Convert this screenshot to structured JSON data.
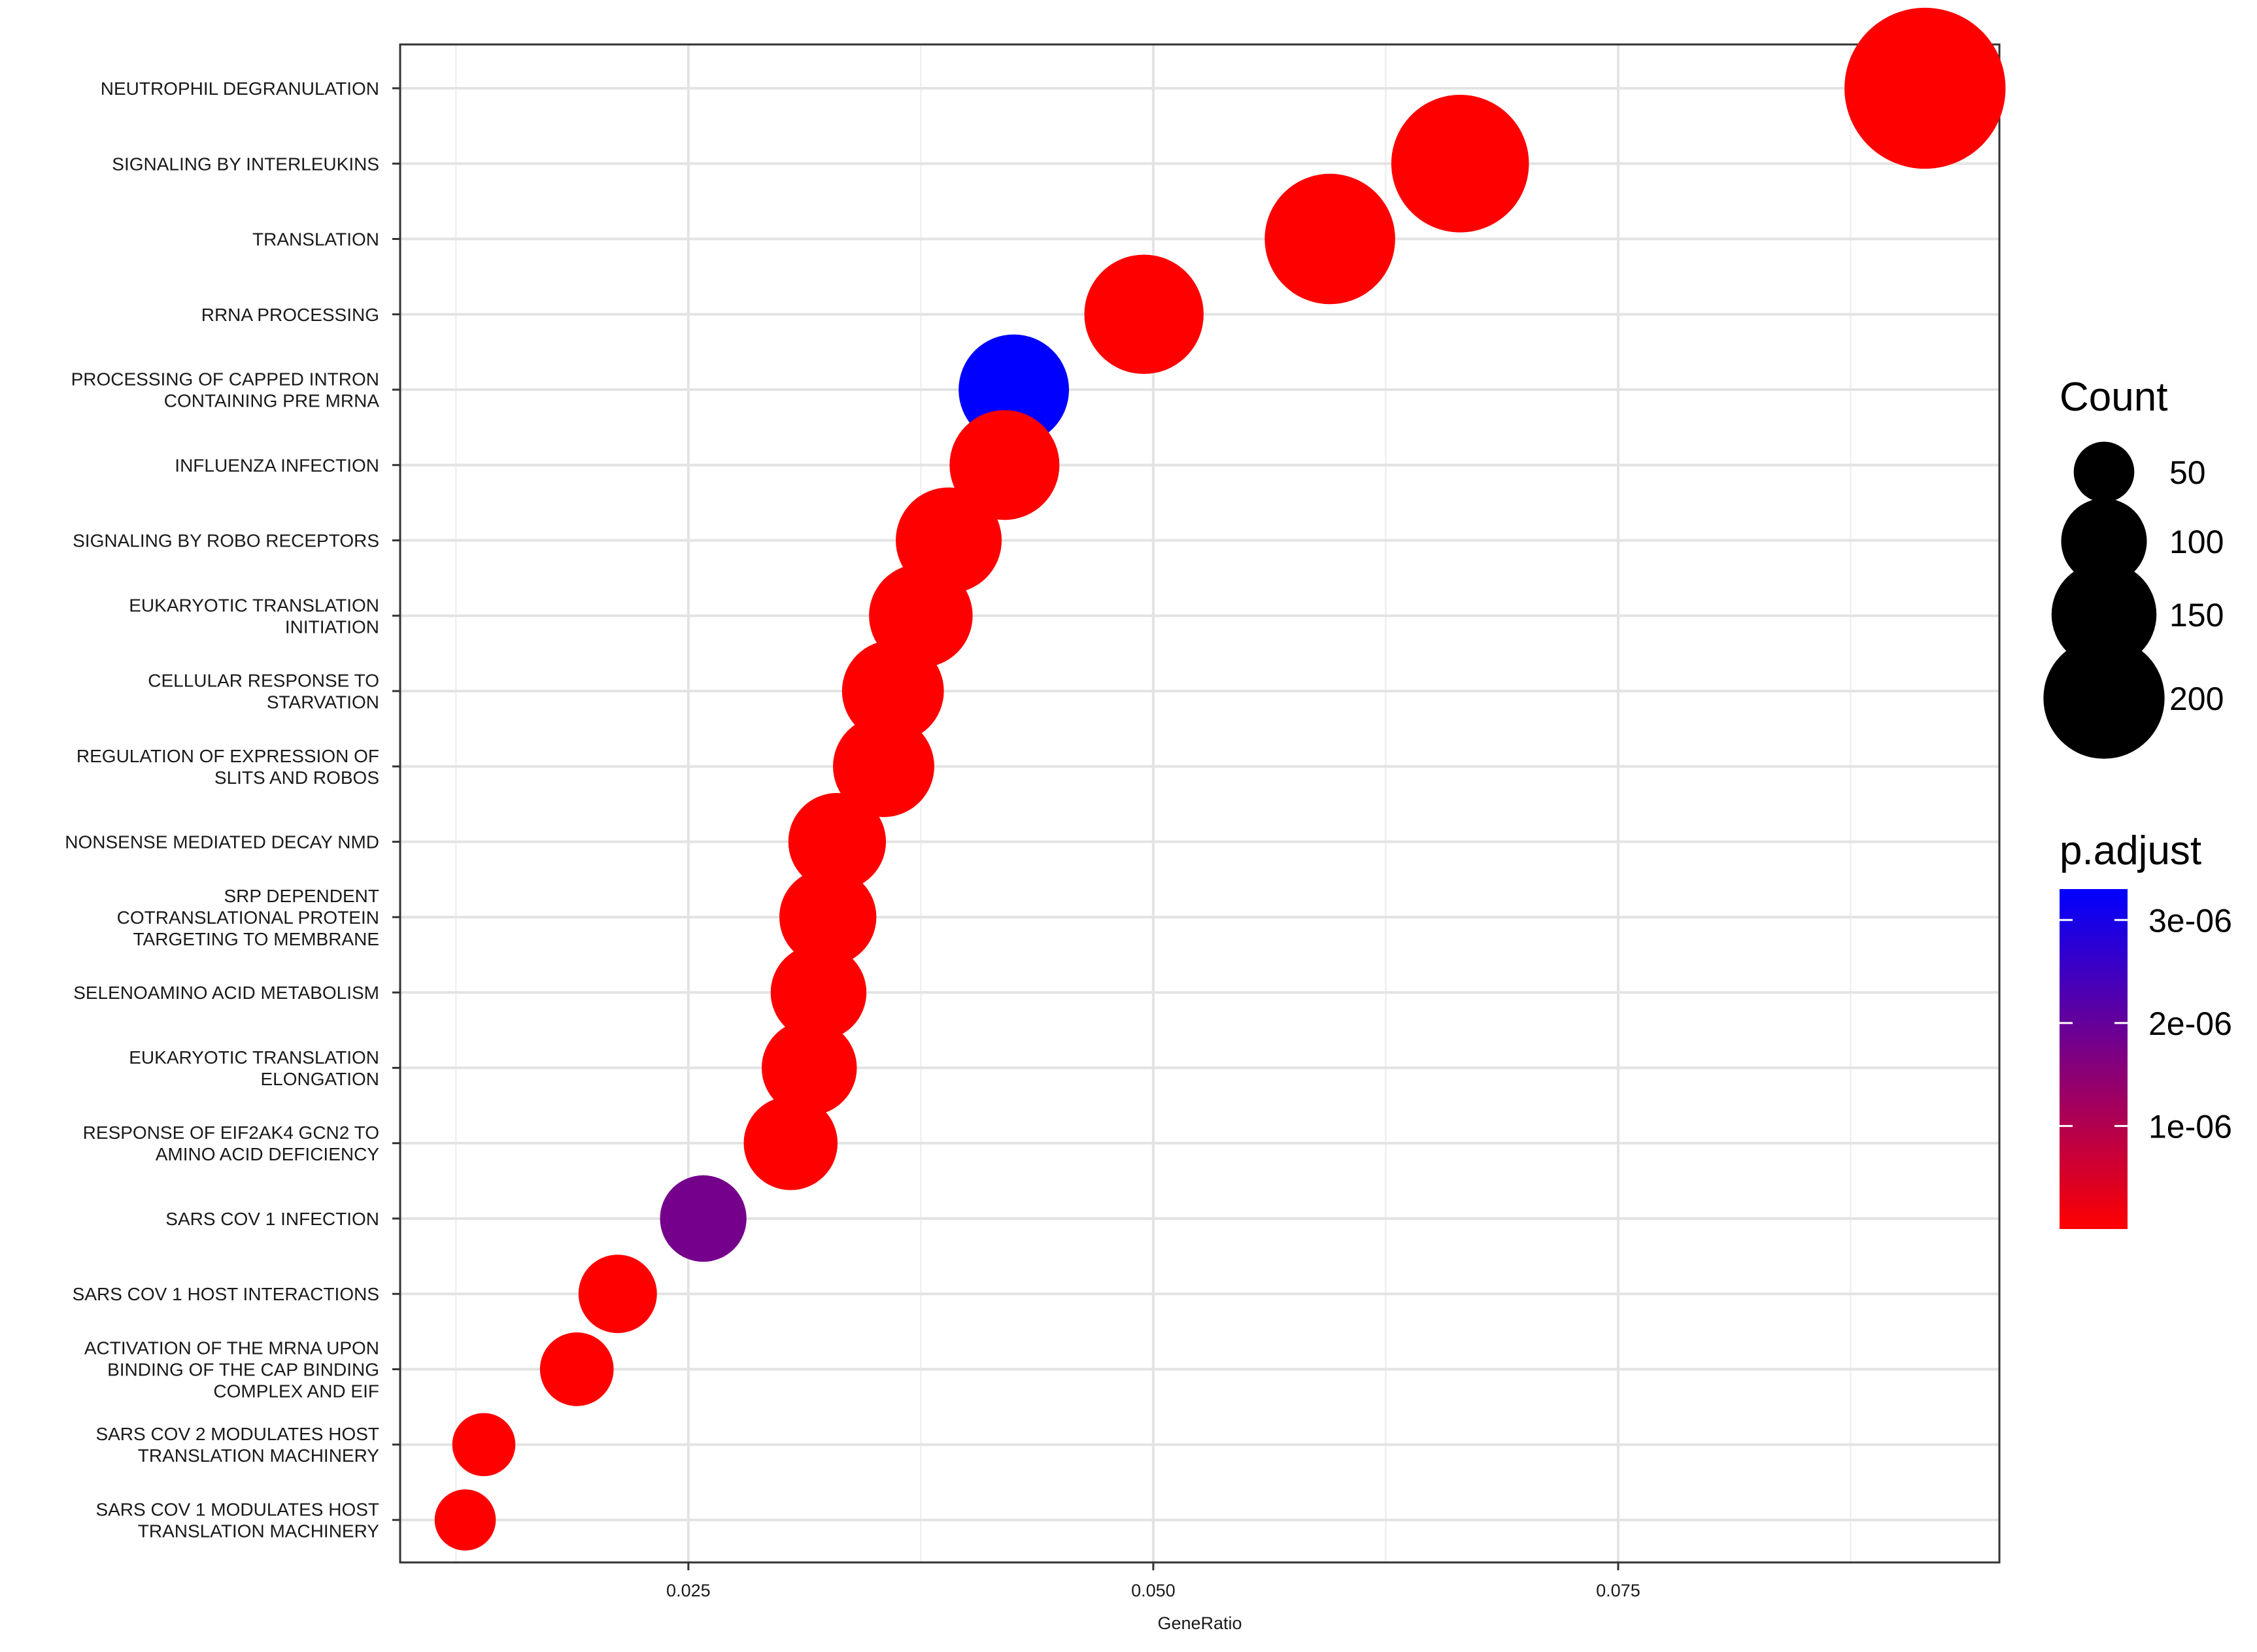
{
  "chart_data": {
    "type": "scatter",
    "xlabel": "GeneRatio",
    "xlim": [
      0.0095,
      0.0955
    ],
    "xticks": [
      {
        "value": 0.025,
        "label": "0.025"
      },
      {
        "value": 0.05,
        "label": "0.050"
      },
      {
        "value": 0.075,
        "label": "0.075"
      }
    ],
    "categories": [
      [
        "NEUTROPHIL DEGRANULATION"
      ],
      [
        "SIGNALING BY INTERLEUKINS"
      ],
      [
        "TRANSLATION"
      ],
      [
        "RRNA PROCESSING"
      ],
      [
        "PROCESSING OF CAPPED INTRON",
        "CONTAINING PRE MRNA"
      ],
      [
        "INFLUENZA INFECTION"
      ],
      [
        "SIGNALING BY ROBO RECEPTORS"
      ],
      [
        "EUKARYOTIC TRANSLATION",
        "INITIATION"
      ],
      [
        "CELLULAR RESPONSE TO",
        "STARVATION"
      ],
      [
        "REGULATION OF EXPRESSION OF",
        "SLITS AND ROBOS"
      ],
      [
        "NONSENSE MEDIATED DECAY NMD"
      ],
      [
        "SRP DEPENDENT",
        "COTRANSLATIONAL PROTEIN",
        "TARGETING TO MEMBRANE"
      ],
      [
        "SELENOAMINO ACID METABOLISM"
      ],
      [
        "EUKARYOTIC TRANSLATION",
        "ELONGATION"
      ],
      [
        "RESPONSE OF EIF2AK4 GCN2 TO",
        "AMINO ACID DEFICIENCY"
      ],
      [
        "SARS COV 1 INFECTION"
      ],
      [
        "SARS COV 1 HOST INTERACTIONS"
      ],
      [
        "ACTIVATION OF THE MRNA UPON",
        "BINDING OF THE CAP BINDING",
        "COMPLEX AND EIF"
      ],
      [
        "SARS COV 2 MODULATES HOST",
        "TRANSLATION MACHINERY"
      ],
      [
        "SARS COV 1 MODULATES HOST",
        "TRANSLATION MACHINERY"
      ]
    ],
    "points": [
      {
        "x": 0.0915,
        "count": 215,
        "p_adjust": 2e-10
      },
      {
        "x": 0.0665,
        "count": 157,
        "p_adjust": 2e-10
      },
      {
        "x": 0.0595,
        "count": 141,
        "p_adjust": 2e-10
      },
      {
        "x": 0.0495,
        "count": 118,
        "p_adjust": 2e-10
      },
      {
        "x": 0.0425,
        "count": 101,
        "p_adjust": 3.3e-06
      },
      {
        "x": 0.042,
        "count": 100,
        "p_adjust": 2e-10
      },
      {
        "x": 0.039,
        "count": 93,
        "p_adjust": 2e-10
      },
      {
        "x": 0.0375,
        "count": 89,
        "p_adjust": 2e-10
      },
      {
        "x": 0.036,
        "count": 86,
        "p_adjust": 2e-10
      },
      {
        "x": 0.0355,
        "count": 85,
        "p_adjust": 2e-10
      },
      {
        "x": 0.033,
        "count": 79,
        "p_adjust": 2e-10
      },
      {
        "x": 0.0325,
        "count": 78,
        "p_adjust": 2e-10
      },
      {
        "x": 0.032,
        "count": 76,
        "p_adjust": 2e-10
      },
      {
        "x": 0.0315,
        "count": 75,
        "p_adjust": 2e-10
      },
      {
        "x": 0.0305,
        "count": 73,
        "p_adjust": 2e-10
      },
      {
        "x": 0.0258,
        "count": 62,
        "p_adjust": 1.8e-06
      },
      {
        "x": 0.0212,
        "count": 51,
        "p_adjust": 2e-10
      },
      {
        "x": 0.019,
        "count": 45,
        "p_adjust": 2e-10
      },
      {
        "x": 0.014,
        "count": 33,
        "p_adjust": 2e-10
      },
      {
        "x": 0.013,
        "count": 31,
        "p_adjust": 2e-10
      }
    ],
    "size_legend": {
      "title": "Count",
      "entries": [
        {
          "value": 50,
          "label": "50"
        },
        {
          "value": 100,
          "label": "100"
        },
        {
          "value": 150,
          "label": "150"
        },
        {
          "value": 200,
          "label": "200"
        }
      ]
    },
    "color_legend": {
      "title": "p.adjust",
      "low_color": "#ff0000",
      "high_color": "#0000ff",
      "range": [
        0,
        3.3e-06
      ],
      "ticks": [
        {
          "value": 3e-06,
          "label": "3e-06"
        },
        {
          "value": 2e-06,
          "label": "2e-06"
        },
        {
          "value": 1e-06,
          "label": "1e-06"
        }
      ]
    },
    "grid": true,
    "legend_position": "right"
  }
}
